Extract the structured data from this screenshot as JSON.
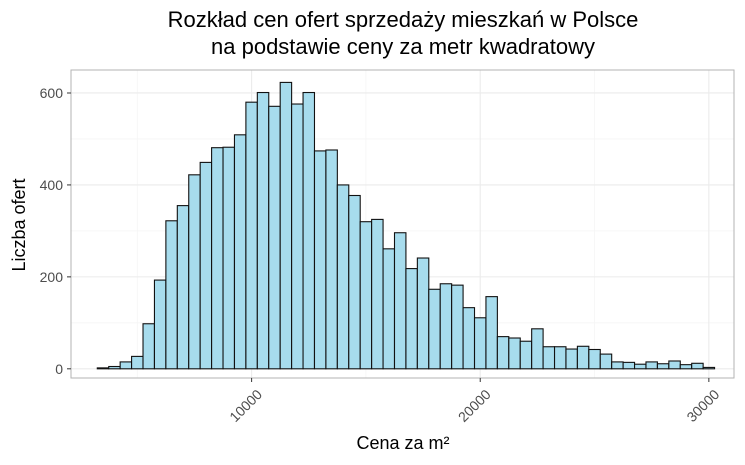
{
  "chart_data": {
    "type": "bar",
    "title_lines": [
      "Rozkład cen ofert sprzedaży mieszkań w Polsce",
      "na podstawie ceny za metr kwadratowy"
    ],
    "xlabel": "Cena za m²",
    "ylabel": "Liczba ofert",
    "xlim": [
      2100,
      31100
    ],
    "ylim": [
      -20,
      650
    ],
    "x_ticks": [
      10000,
      20000,
      30000
    ],
    "x_tick_labels": [
      "10000",
      "20000",
      "30000"
    ],
    "y_ticks": [
      0,
      200,
      400,
      600
    ],
    "y_tick_labels": [
      "0",
      "200",
      "400",
      "600"
    ],
    "bin_width": 500,
    "bin_centers": [
      3500,
      4000,
      4500,
      5000,
      5500,
      6000,
      6500,
      7000,
      7500,
      8000,
      8500,
      9000,
      9500,
      10000,
      10500,
      11000,
      11500,
      12000,
      12500,
      13000,
      13500,
      14000,
      14500,
      15000,
      15500,
      16000,
      16500,
      17000,
      17500,
      18000,
      18500,
      19000,
      19500,
      20000,
      20500,
      21000,
      21500,
      22000,
      22500,
      23000,
      23500,
      24000,
      24500,
      25000,
      25500,
      26000,
      26500,
      27000,
      27500,
      28000,
      28500,
      29000,
      29500,
      30000
    ],
    "values": [
      2,
      5,
      15,
      27,
      98,
      193,
      322,
      355,
      422,
      449,
      481,
      482,
      509,
      580,
      601,
      571,
      623,
      576,
      601,
      474,
      476,
      400,
      377,
      320,
      325,
      261,
      296,
      218,
      241,
      173,
      185,
      182,
      133,
      111,
      157,
      70,
      67,
      60,
      87,
      48,
      48,
      43,
      49,
      42,
      32,
      15,
      14,
      10,
      15,
      11,
      17,
      9,
      12,
      3
    ],
    "grid": true,
    "colors": {
      "bar_fill": "#a7dced",
      "bar_stroke": "#111111",
      "grid_major": "#ebebeb",
      "grid_minor": "#f5f5f5",
      "panel_border": "#b3b3b3"
    }
  }
}
